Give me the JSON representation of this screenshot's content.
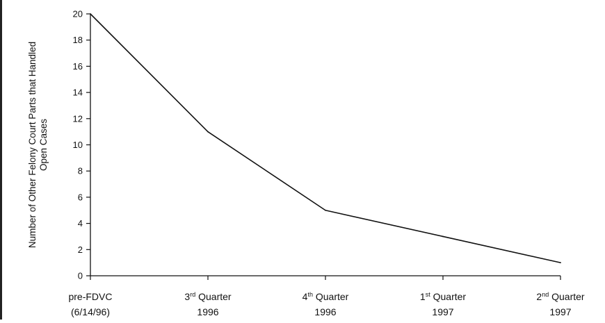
{
  "chart_data": {
    "type": "line",
    "title": "",
    "ylabel": "Number of Other Felony Court Parts that Handled Open Cases",
    "xlabel": "",
    "ylim": [
      0,
      20
    ],
    "yticks": [
      0,
      2,
      4,
      6,
      8,
      10,
      12,
      14,
      16,
      18,
      20
    ],
    "grid": false,
    "legend": "none",
    "categories": [
      {
        "label": "pre-FDVC",
        "sup": "",
        "rest": "",
        "line2": "(6/14/96)"
      },
      {
        "label": "3",
        "sup": "rd",
        "rest": " Quarter",
        "line2": "1996"
      },
      {
        "label": "4",
        "sup": "th",
        "rest": " Quarter",
        "line2": "1996"
      },
      {
        "label": "1",
        "sup": "st",
        "rest": " Quarter",
        "line2": "1997"
      },
      {
        "label": "2",
        "sup": "nd",
        "rest": " Quarter",
        "line2": "1997"
      }
    ],
    "series": [
      {
        "values": [
          20,
          11,
          5,
          3,
          1
        ],
        "color": "#111111"
      }
    ]
  }
}
